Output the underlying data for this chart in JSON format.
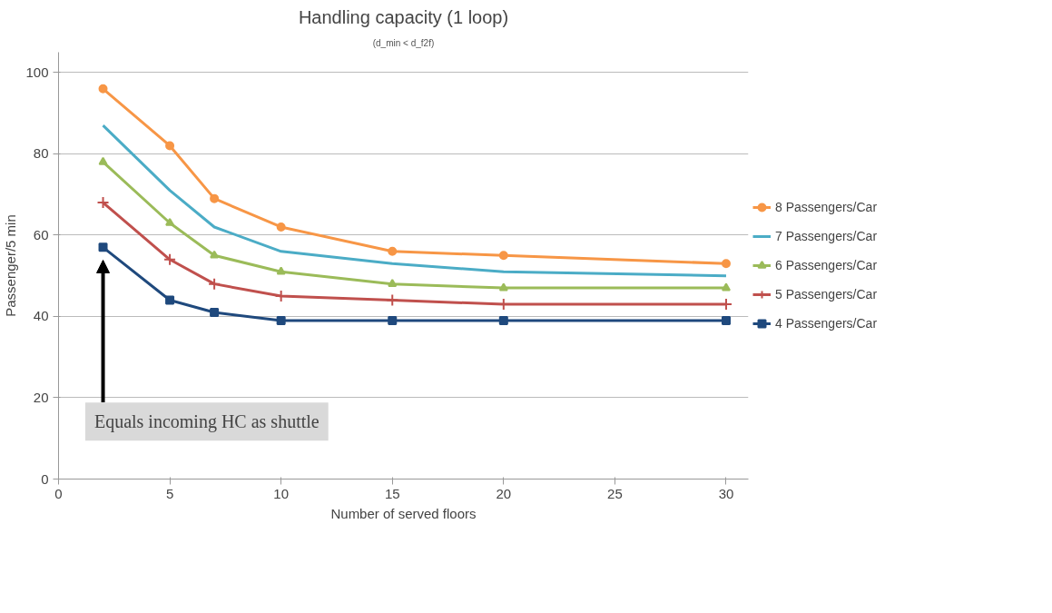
{
  "chart_data": {
    "type": "line",
    "title": "Handling capacity (1 loop)",
    "subtitle": "(d_min < d_f2f)",
    "xlabel": "Number of served floors",
    "ylabel": "Passenger/5 min",
    "x": [
      2,
      5,
      7,
      10,
      15,
      20,
      30
    ],
    "series": [
      {
        "name": "8 Passengers/Car",
        "color": "#f79646",
        "marker": "circle",
        "values": [
          96,
          82,
          69,
          62,
          56,
          55,
          53
        ]
      },
      {
        "name": "7 Passengers/Car",
        "color": "#4bacc6",
        "marker": "none",
        "values": [
          87,
          71,
          62,
          56,
          53,
          51,
          50
        ]
      },
      {
        "name": "6 Passengers/Car",
        "color": "#9bbb59",
        "marker": "triangle",
        "values": [
          78,
          63,
          55,
          51,
          48,
          47,
          47
        ]
      },
      {
        "name": "5 Passengers/Car",
        "color": "#c0504d",
        "marker": "cross",
        "values": [
          68,
          54,
          48,
          45,
          44,
          43,
          43
        ]
      },
      {
        "name": "4 Passengers/Car",
        "color": "#1f497d",
        "marker": "square",
        "values": [
          57,
          44,
          41,
          39,
          39,
          39,
          39
        ]
      }
    ],
    "xlim": [
      0,
      31
    ],
    "ylim": [
      0,
      105
    ],
    "xticks": [
      0,
      5,
      10,
      15,
      20,
      25,
      30
    ],
    "yticks": [
      0,
      20,
      40,
      60,
      80,
      100
    ],
    "grid": "y",
    "legend": "right",
    "line_style": "solid",
    "annotations": [
      "Equals incoming HC as shuttle"
    ]
  }
}
